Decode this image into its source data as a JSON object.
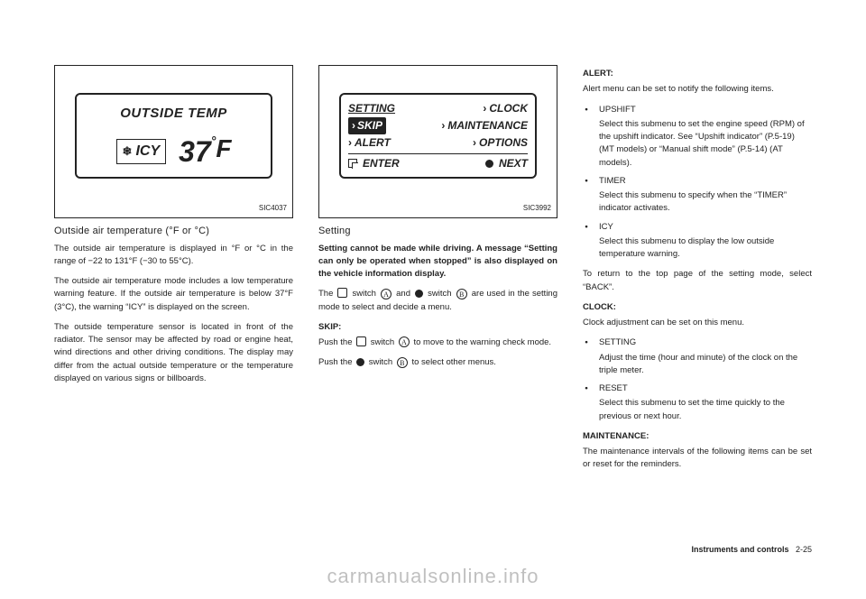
{
  "figure1": {
    "label": "SIC4037",
    "display_title": "OUTSIDE TEMP",
    "icy_label": "ICY",
    "temp_value": "37",
    "temp_unit": "F"
  },
  "figure2": {
    "label": "SIC3992",
    "row1_l": "SETTING",
    "row1_r": "CLOCK",
    "row2_l": "SKIP",
    "row2_r": "MAINTENANCE",
    "row3_l": "ALERT",
    "row3_r": "OPTIONS",
    "row4_l": "ENTER",
    "row4_r": "NEXT"
  },
  "col1": {
    "subheading": "Outside air temperature (°F or °C)",
    "p1": "The outside air temperature is displayed in °F or °C in the range of −22 to 131°F (−30 to 55°C).",
    "p2": "The outside air temperature mode includes a low temperature warning feature. If the outside air temperature is below 37°F (3°C), the warning “ICY” is displayed on the screen.",
    "p3": "The outside temperature sensor is located in front of the radiator. The sensor may be affected by road or engine heat, wind directions and other driving conditions. The display may differ from the actual outside temperature or the temperature displayed on various signs or billboards."
  },
  "col2": {
    "subheading": "Setting",
    "bold_p": "Setting cannot be made while driving. A message “Setting can only be operated when stopped” is also displayed on the vehicle information display.",
    "p_switch_a": "The ",
    "p_switch_b": " switch ",
    "p_switch_c": " and ",
    "p_switch_d": " switch ",
    "p_switch_e": " are used in the setting mode to select and decide a menu.",
    "skip_label": "SKIP:",
    "skip_p_a": "Push the ",
    "skip_p_b": " switch ",
    "skip_p_c": " to move to the warning check mode.",
    "next_p_a": "Push the ",
    "next_p_b": " switch ",
    "next_p_c": " to select other menus."
  },
  "col3": {
    "alert_label": "ALERT:",
    "alert_intro": "Alert menu can be set to notify the following items.",
    "upshift_title": "UPSHIFT",
    "upshift_body": "Select this submenu to set the engine speed (RPM) of the upshift indicator. See “Upshift indicator” (P.5-19) (MT models) or “Manual shift mode” (P.5-14) (AT models).",
    "timer_title": "TIMER",
    "timer_body": "Select this submenu to specify when the “TIMER” indicator activates.",
    "icy_title": "ICY",
    "icy_body": "Select this submenu to display the low outside temperature warning.",
    "return_p": "To return to the top page of the setting mode, select “BACK”.",
    "clock_label": "CLOCK:",
    "clock_intro": "Clock adjustment can be set on this menu.",
    "setting_title": "SETTING",
    "setting_body": "Adjust the time (hour and minute) of the clock on the triple meter.",
    "reset_title": "RESET",
    "reset_body": "Select this submenu to set the time quickly to the previous or next hour.",
    "maint_label": "MAINTENANCE:",
    "maint_intro": "The maintenance intervals of the following items can be set or reset for the reminders."
  },
  "footer": {
    "section": "Instruments and controls",
    "page": "2-25"
  },
  "watermark": "carmanualsonline.info"
}
